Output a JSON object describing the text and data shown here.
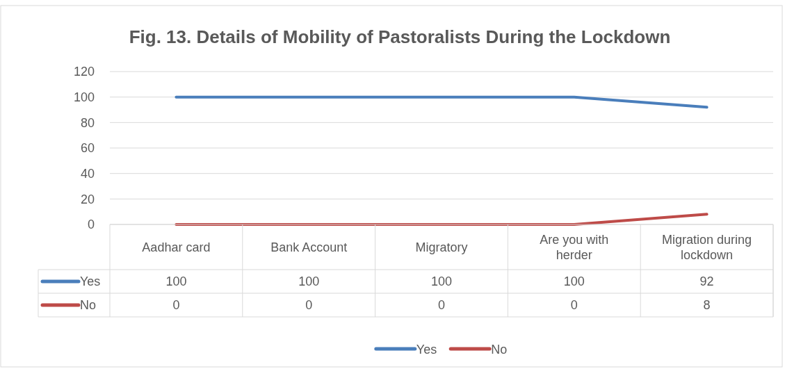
{
  "chart_data": {
    "type": "line",
    "title": "Fig. 13. Details of Mobility of Pastoralists During the Lockdown",
    "categories": [
      "Aadhar card",
      "Bank Account",
      "Migratory",
      "Are you with herder",
      "Migration during lockdown"
    ],
    "series": [
      {
        "name": "Yes",
        "color": "#4a7ebb",
        "values": [
          100,
          100,
          100,
          100,
          92
        ]
      },
      {
        "name": "No",
        "color": "#be4b48",
        "values": [
          0,
          0,
          0,
          0,
          8
        ]
      }
    ],
    "ylim": [
      0,
      120
    ],
    "yticks": [
      0,
      20,
      40,
      60,
      80,
      100,
      120
    ],
    "grid": "y",
    "legend": "bottom",
    "data_labels": true,
    "marker": "none",
    "line_style": "solid"
  }
}
